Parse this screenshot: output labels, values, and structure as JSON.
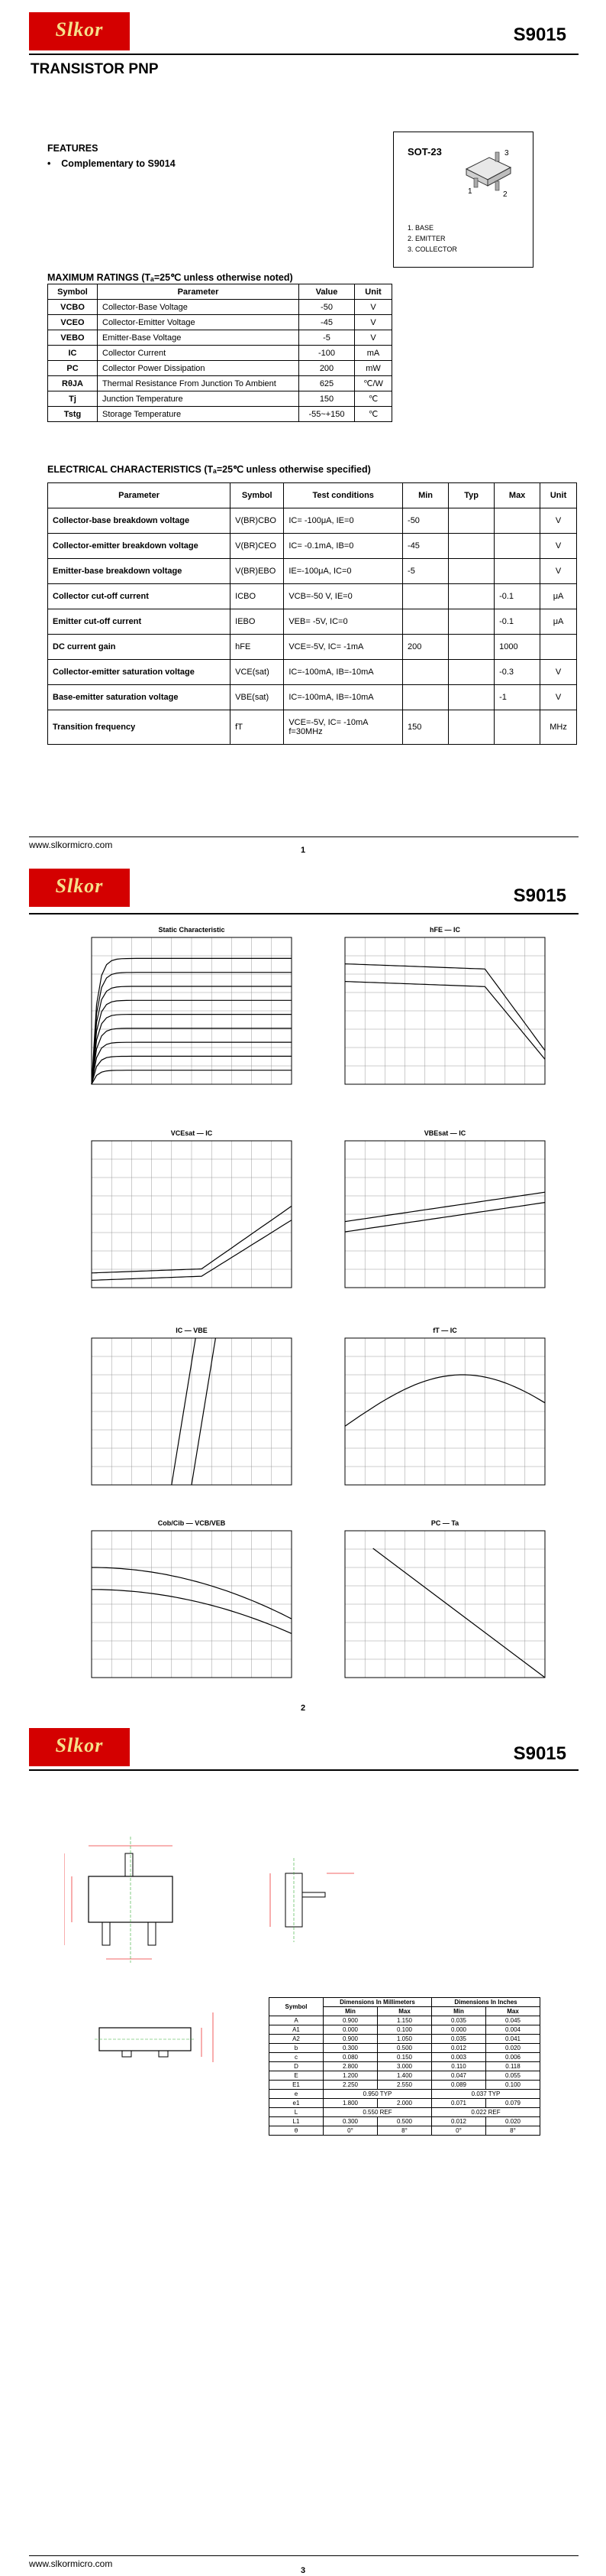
{
  "header": {
    "logo_text": "Slkor",
    "part_number": "S9015"
  },
  "page1": {
    "subtitle": "TRANSISTOR PNP",
    "features_title": "FEATURES",
    "features": [
      "Complementary to S9014"
    ],
    "package": {
      "name": "SOT-23",
      "pins": [
        "1. BASE",
        "2. EMITTER",
        "3. COLLECTOR"
      ],
      "pin_marks": [
        "3",
        "2",
        "1"
      ]
    },
    "max_ratings_title": "MAXIMUM RATINGS (Tₐ=25℃ unless otherwise noted)",
    "max_ratings_headers": [
      "Symbol",
      "Parameter",
      "Value",
      "Unit"
    ],
    "max_ratings": [
      [
        "VCBO",
        "Collector-Base Voltage",
        "-50",
        "V"
      ],
      [
        "VCEO",
        "Collector-Emitter Voltage",
        "-45",
        "V"
      ],
      [
        "VEBO",
        "Emitter-Base Voltage",
        "-5",
        "V"
      ],
      [
        "IC",
        "Collector Current",
        "-100",
        "mA"
      ],
      [
        "PC",
        "Collector Power Dissipation",
        "200",
        "mW"
      ],
      [
        "RθJA",
        "Thermal Resistance From Junction To Ambient",
        "625",
        "℃/W"
      ],
      [
        "Tj",
        "Junction Temperature",
        "150",
        "℃"
      ],
      [
        "Tstg",
        "Storage Temperature",
        "-55~+150",
        "℃"
      ]
    ],
    "elec_title": "ELECTRICAL CHARACTERISTICS (Tₐ=25℃ unless otherwise specified)",
    "elec_headers": [
      "Parameter",
      "Symbol",
      "Test  conditions",
      "Min",
      "Typ",
      "Max",
      "Unit"
    ],
    "elec_rows": [
      [
        "Collector-base breakdown voltage",
        "V(BR)CBO",
        "IC= -100μA, IE=0",
        "-50",
        "",
        "",
        "V"
      ],
      [
        "Collector-emitter breakdown voltage",
        "V(BR)CEO",
        "IC= -0.1mA, IB=0",
        "-45",
        "",
        "",
        "V"
      ],
      [
        "Emitter-base breakdown voltage",
        "V(BR)EBO",
        "IE=-100μA, IC=0",
        "-5",
        "",
        "",
        "V"
      ],
      [
        "Collector cut-off current",
        "ICBO",
        "VCB=-50 V, IE=0",
        "",
        "",
        "-0.1",
        "μA"
      ],
      [
        "Emitter cut-off current",
        "IEBO",
        "VEB= -5V, IC=0",
        "",
        "",
        "-0.1",
        "μA"
      ],
      [
        "DC current gain",
        "hFE",
        "VCE=-5V, IC= -1mA",
        "200",
        "",
        "1000",
        ""
      ],
      [
        "Collector-emitter saturation voltage",
        "VCE(sat)",
        "IC=-100mA, IB=-10mA",
        "",
        "",
        "-0.3",
        "V"
      ],
      [
        "Base-emitter saturation voltage",
        "VBE(sat)",
        "IC=-100mA, IB=-10mA",
        "",
        "",
        "-1",
        "V"
      ],
      [
        "Transition frequency",
        "fT",
        "VCE=-5V, IC= -10mA f=30MHz",
        "150",
        "",
        "",
        "MHz"
      ]
    ],
    "footer_url": "www.slkormicro.com",
    "page_number": "1"
  },
  "page2": {
    "graph_titles": [
      "Static Characteristic",
      "hFE — IC",
      "VCEsat — IC",
      "VBEsat — IC",
      "IC — VBE",
      "fT — IC",
      "Cob/Cib — VCB/VEB",
      "PC — Ta"
    ],
    "footer_url": "www.slkormicro.com",
    "page_number": "2"
  },
  "page3": {
    "dim_headers": [
      "Symbol",
      "Dimensions In Millimeters",
      "Dimensions In Inches"
    ],
    "dim_subheaders": [
      "Min",
      "Max",
      "Min",
      "Max"
    ],
    "dim_rows": [
      [
        "A",
        "0.900",
        "1.150",
        "0.035",
        "0.045"
      ],
      [
        "A1",
        "0.000",
        "0.100",
        "0.000",
        "0.004"
      ],
      [
        "A2",
        "0.900",
        "1.050",
        "0.035",
        "0.041"
      ],
      [
        "b",
        "0.300",
        "0.500",
        "0.012",
        "0.020"
      ],
      [
        "c",
        "0.080",
        "0.150",
        "0.003",
        "0.006"
      ],
      [
        "D",
        "2.800",
        "3.000",
        "0.110",
        "0.118"
      ],
      [
        "E",
        "1.200",
        "1.400",
        "0.047",
        "0.055"
      ],
      [
        "E1",
        "2.250",
        "2.550",
        "0.089",
        "0.100"
      ],
      [
        "e",
        "0.950 TYP",
        "",
        "0.037 TYP",
        ""
      ],
      [
        "e1",
        "1.800",
        "2.000",
        "0.071",
        "0.079"
      ],
      [
        "L",
        "0.550 REF",
        "",
        "0.022 REF",
        ""
      ],
      [
        "L1",
        "0.300",
        "0.500",
        "0.012",
        "0.020"
      ],
      [
        "θ",
        "0°",
        "8°",
        "0°",
        "8°"
      ]
    ],
    "footer_url": "www.slkormicro.com",
    "page_number": "3"
  }
}
